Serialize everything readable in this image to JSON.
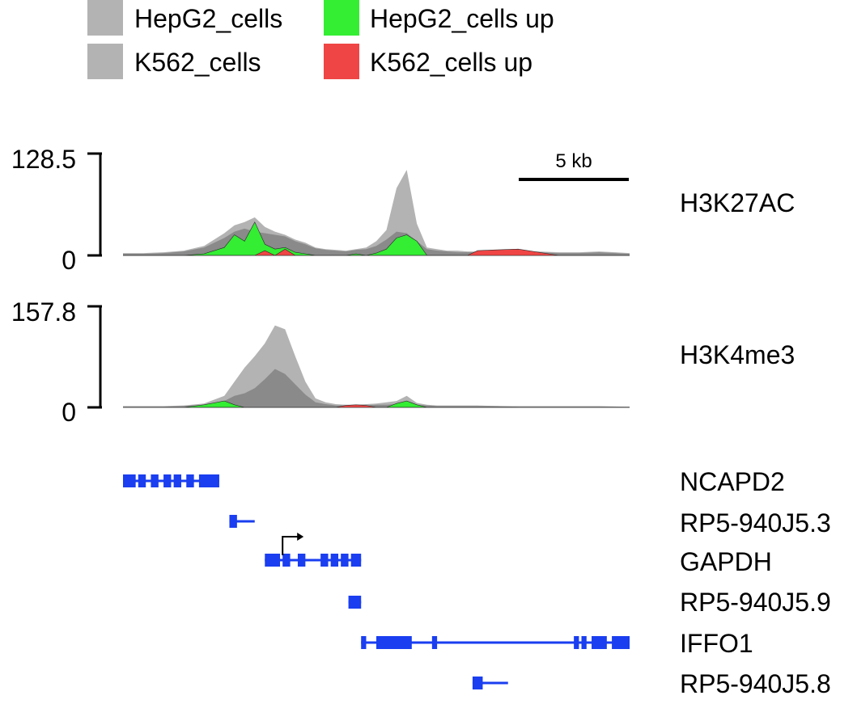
{
  "legend": [
    {
      "label": "HepG2_cells",
      "color": "#b3b3b3"
    },
    {
      "label": "HepG2_cells up",
      "color": "#33ee33"
    },
    {
      "label": "K562_cells",
      "color": "#b3b3b3"
    },
    {
      "label": "K562_cells up",
      "color": "#f04545"
    }
  ],
  "scale_bar": {
    "label": "5 kb"
  },
  "colors": {
    "light_gray": "#b3b3b3",
    "dark_gray": "#8a8a8a",
    "green": "#33ee33",
    "red": "#f04545",
    "gene": "#1a3ef0"
  },
  "chart_data": [
    {
      "type": "area",
      "track": "H3K27AC",
      "ylim": [
        0,
        128.5
      ],
      "tick_labels": [
        "128.5",
        "0"
      ],
      "x": [
        0,
        0.04,
        0.08,
        0.12,
        0.16,
        0.2,
        0.22,
        0.24,
        0.26,
        0.28,
        0.3,
        0.32,
        0.34,
        0.36,
        0.38,
        0.4,
        0.42,
        0.44,
        0.46,
        0.48,
        0.5,
        0.52,
        0.54,
        0.56,
        0.58,
        0.6,
        0.62,
        0.64,
        0.66,
        0.68,
        0.7,
        0.74,
        0.78,
        0.82,
        0.86,
        0.9,
        0.94,
        1.0
      ],
      "series": [
        {
          "label_in_legend": "HepG2_cells",
          "values": [
            3,
            3,
            4,
            6,
            12,
            28,
            38,
            42,
            48,
            36,
            30,
            26,
            20,
            16,
            10,
            8,
            7,
            6,
            8,
            10,
            18,
            32,
            85,
            108,
            40,
            10,
            8,
            6,
            6,
            5,
            5,
            4,
            4,
            5,
            4,
            4,
            5,
            3
          ]
        },
        {
          "label_in_legend": "K562_cells",
          "values": [
            2,
            2,
            3,
            5,
            10,
            22,
            30,
            34,
            30,
            28,
            26,
            24,
            18,
            14,
            9,
            7,
            6,
            5,
            7,
            8,
            12,
            20,
            30,
            28,
            18,
            8,
            6,
            5,
            4,
            4,
            4,
            3,
            3,
            4,
            3,
            3,
            4,
            2
          ]
        },
        {
          "label_in_legend": "HepG2_cells up",
          "values": [
            0,
            0,
            0,
            0,
            2,
            10,
            26,
            18,
            42,
            14,
            8,
            10,
            4,
            2,
            0,
            0,
            0,
            0,
            2,
            0,
            3,
            8,
            22,
            26,
            18,
            0,
            0,
            0,
            0,
            0,
            0,
            0,
            0,
            0,
            0,
            0,
            0,
            0
          ]
        },
        {
          "label_in_legend": "K562_cells up",
          "values": [
            0,
            0,
            0,
            0,
            0,
            0,
            0,
            0,
            0,
            6,
            0,
            8,
            0,
            0,
            0,
            0,
            0,
            0,
            0,
            0,
            0,
            0,
            0,
            0,
            0,
            0,
            0,
            0,
            0,
            0,
            6,
            7,
            8,
            4,
            0,
            0,
            0,
            0
          ]
        }
      ]
    },
    {
      "type": "area",
      "track": "H3K4me3",
      "ylim": [
        0,
        157.8
      ],
      "tick_labels": [
        "157.8",
        "0"
      ],
      "x": [
        0,
        0.04,
        0.08,
        0.12,
        0.16,
        0.2,
        0.22,
        0.24,
        0.26,
        0.28,
        0.3,
        0.32,
        0.34,
        0.36,
        0.38,
        0.4,
        0.42,
        0.44,
        0.46,
        0.48,
        0.5,
        0.52,
        0.54,
        0.56,
        0.58,
        0.6,
        0.62,
        0.64,
        0.66,
        0.68,
        0.7,
        0.74,
        0.78,
        0.82,
        0.86,
        0.9,
        0.94,
        1.0
      ],
      "series": [
        {
          "label_in_legend": "HepG2_cells",
          "values": [
            2,
            2,
            2,
            3,
            6,
            18,
            40,
            62,
            80,
            100,
            128,
            122,
            80,
            40,
            14,
            8,
            5,
            4,
            4,
            5,
            6,
            8,
            10,
            18,
            7,
            4,
            3,
            3,
            3,
            3,
            3,
            2,
            2,
            2,
            2,
            2,
            2,
            1
          ]
        },
        {
          "label_in_legend": "K562_cells",
          "values": [
            1,
            1,
            1,
            2,
            4,
            10,
            18,
            22,
            30,
            44,
            60,
            52,
            36,
            20,
            8,
            5,
            3,
            3,
            3,
            3,
            4,
            4,
            5,
            6,
            4,
            3,
            2,
            2,
            2,
            2,
            2,
            2,
            1,
            1,
            1,
            1,
            1,
            1
          ]
        },
        {
          "label_in_legend": "HepG2_cells up",
          "values": [
            0,
            0,
            0,
            0,
            4,
            10,
            4,
            0,
            0,
            0,
            0,
            0,
            0,
            0,
            0,
            0,
            0,
            0,
            0,
            0,
            0,
            0,
            6,
            10,
            4,
            0,
            0,
            0,
            0,
            0,
            0,
            0,
            0,
            0,
            0,
            0,
            0,
            0
          ]
        },
        {
          "label_in_legend": "K562_cells up",
          "values": [
            0,
            0,
            0,
            0,
            0,
            0,
            0,
            0,
            0,
            0,
            0,
            0,
            0,
            0,
            0,
            0,
            0,
            3,
            4,
            3,
            0,
            0,
            0,
            0,
            0,
            0,
            0,
            0,
            0,
            0,
            0,
            0,
            0,
            0,
            0,
            0,
            0,
            0
          ]
        }
      ]
    }
  ],
  "genes": [
    {
      "name": "NCAPD2",
      "start": 0.0,
      "end": 0.19,
      "exons": [
        [
          0.0,
          0.025
        ],
        [
          0.03,
          0.045
        ],
        [
          0.055,
          0.07
        ],
        [
          0.08,
          0.095
        ],
        [
          0.1,
          0.115
        ],
        [
          0.125,
          0.14
        ],
        [
          0.15,
          0.19
        ]
      ]
    },
    {
      "name": "RP5-940J5.3",
      "start": 0.21,
      "end": 0.26,
      "exons": [
        [
          0.21,
          0.225
        ]
      ]
    },
    {
      "name": "GAPDH",
      "start": 0.28,
      "end": 0.47,
      "exons": [
        [
          0.28,
          0.31
        ],
        [
          0.315,
          0.33
        ],
        [
          0.345,
          0.36
        ],
        [
          0.39,
          0.405
        ],
        [
          0.41,
          0.425
        ],
        [
          0.43,
          0.445
        ],
        [
          0.45,
          0.47
        ]
      ],
      "tss": 0.315
    },
    {
      "name": "RP5-940J5.9",
      "start": 0.445,
      "end": 0.47,
      "exons": [
        [
          0.445,
          0.47
        ]
      ]
    },
    {
      "name": "IFFO1",
      "start": 0.47,
      "end": 1.0,
      "exons": [
        [
          0.47,
          0.48
        ],
        [
          0.5,
          0.57
        ],
        [
          0.61,
          0.62
        ],
        [
          0.89,
          0.9
        ],
        [
          0.905,
          0.915
        ],
        [
          0.925,
          0.955
        ],
        [
          0.965,
          1.0
        ]
      ]
    },
    {
      "name": "RP5-940J5.8",
      "start": 0.69,
      "end": 0.76,
      "exons": [
        [
          0.69,
          0.71
        ]
      ]
    }
  ]
}
